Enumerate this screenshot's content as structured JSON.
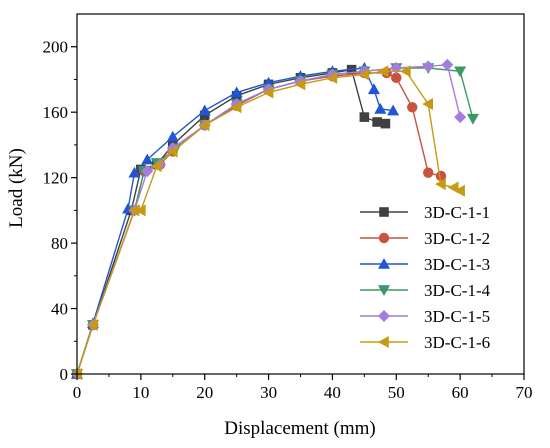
{
  "chart_data": {
    "type": "line",
    "title": "",
    "xlabel": "Displacement (mm)",
    "ylabel": "Load (kN)",
    "xlim": [
      0,
      70
    ],
    "ylim": [
      0,
      220
    ],
    "xticks": [
      0,
      10,
      20,
      30,
      40,
      50,
      60,
      70
    ],
    "yticks": [
      0,
      40,
      80,
      120,
      160,
      200
    ],
    "grid": false,
    "legend_position": "bottom-right",
    "series": [
      {
        "name": "3D-C-1-1",
        "color": "#404040",
        "marker": "square",
        "x": [
          0,
          2.5,
          8.5,
          10,
          12.5,
          15,
          20,
          25,
          30,
          35,
          40,
          43,
          45,
          47,
          48.3
        ],
        "y": [
          0,
          30,
          100,
          125,
          128,
          140,
          158,
          170,
          177,
          181,
          184,
          186,
          157,
          154,
          153
        ]
      },
      {
        "name": "3D-C-1-2",
        "color": "#c8523e",
        "marker": "circle",
        "x": [
          0,
          2.5,
          9,
          10.5,
          13,
          15,
          20,
          25,
          30,
          35,
          40,
          45,
          48.5,
          50,
          52.5,
          55,
          57
        ],
        "y": [
          0,
          30,
          100,
          124,
          128,
          136,
          152,
          164,
          174,
          179,
          182,
          184,
          184,
          181,
          163,
          123,
          121
        ]
      },
      {
        "name": "3D-C-1-3",
        "color": "#2255d4",
        "marker": "triangle-up",
        "x": [
          0,
          2.5,
          8,
          9,
          11,
          15,
          20,
          25,
          30,
          35,
          40,
          45,
          46.5,
          47.5,
          49.5
        ],
        "y": [
          0,
          31,
          101,
          123,
          131,
          145,
          161,
          172,
          178,
          182,
          185,
          187,
          174,
          162,
          161
        ]
      },
      {
        "name": "3D-C-1-4",
        "color": "#3a9b62",
        "marker": "triangle-down",
        "x": [
          0,
          2.5,
          9,
          10.5,
          12.5,
          15.5,
          20,
          25,
          30,
          35,
          40,
          45,
          50,
          55,
          60,
          62
        ],
        "y": [
          0,
          30,
          100,
          124,
          129,
          138,
          152,
          165,
          174,
          179,
          183,
          185,
          187,
          187,
          185,
          156
        ]
      },
      {
        "name": "3D-C-1-5",
        "color": "#a67be0",
        "marker": "diamond",
        "x": [
          0,
          2.5,
          9,
          11,
          13,
          15,
          20,
          25,
          30,
          35,
          40,
          45,
          50,
          55,
          58,
          60
        ],
        "y": [
          0,
          30,
          100,
          124,
          128,
          138,
          152,
          165,
          174,
          179,
          183,
          185,
          187,
          188,
          189,
          157
        ]
      },
      {
        "name": "3D-C-1-6",
        "color": "#c79a15",
        "marker": "triangle-left",
        "x": [
          0,
          2.5,
          9,
          10,
          12.5,
          15,
          20,
          25,
          30,
          35,
          40,
          45,
          48,
          51.5,
          55,
          57,
          59,
          60
        ],
        "y": [
          0,
          30,
          100,
          100,
          127,
          136,
          152,
          163,
          172,
          177,
          181,
          183,
          185,
          185,
          165,
          116,
          114,
          112
        ]
      }
    ]
  }
}
